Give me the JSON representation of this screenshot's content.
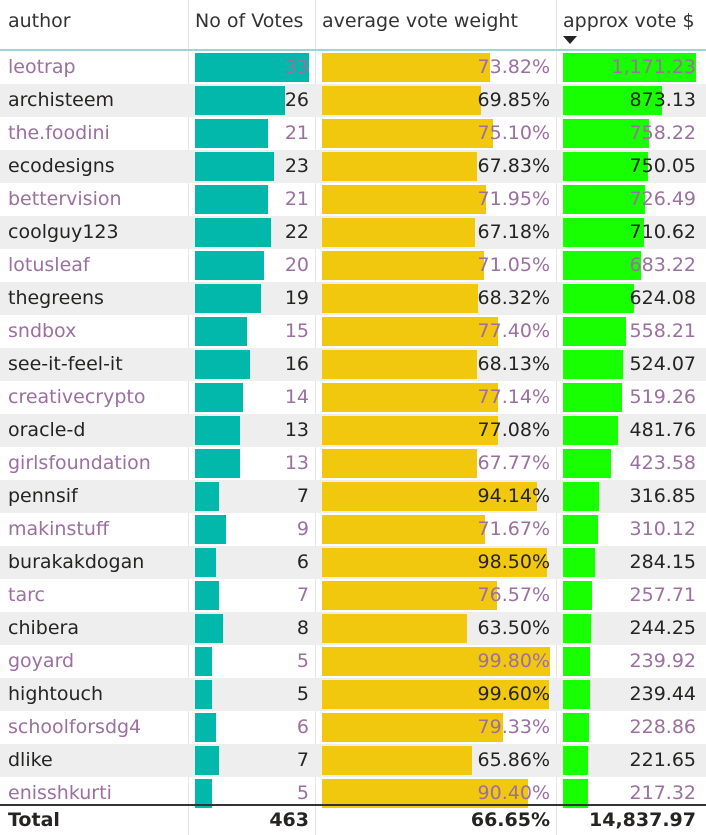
{
  "headers": {
    "author": "author",
    "votes": "No of Votes",
    "weight": "average vote weight",
    "dollars": "approx vote $"
  },
  "sort_icon": "sort-descending-icon",
  "colors": {
    "votes_bar": "#01b8aa",
    "weight_bar": "#f2c80f",
    "dollars_bar": "#17ff00",
    "alt_text": "#9b6fa0"
  },
  "chart_data": {
    "type": "table",
    "columns": [
      "author",
      "No of Votes",
      "average vote weight",
      "approx vote $"
    ],
    "rows": [
      {
        "author": "leotrap",
        "votes": 33,
        "votes_label": "33",
        "weight": 73.82,
        "weight_label": "73.82%",
        "dollars": 1171.23,
        "dollars_label": "1,171.23"
      },
      {
        "author": "archisteem",
        "votes": 26,
        "votes_label": "26",
        "weight": 69.85,
        "weight_label": "69.85%",
        "dollars": 873.13,
        "dollars_label": "873.13"
      },
      {
        "author": "the.foodini",
        "votes": 21,
        "votes_label": "21",
        "weight": 75.1,
        "weight_label": "75.10%",
        "dollars": 758.22,
        "dollars_label": "758.22"
      },
      {
        "author": "ecodesigns",
        "votes": 23,
        "votes_label": "23",
        "weight": 67.83,
        "weight_label": "67.83%",
        "dollars": 750.05,
        "dollars_label": "750.05"
      },
      {
        "author": "bettervision",
        "votes": 21,
        "votes_label": "21",
        "weight": 71.95,
        "weight_label": "71.95%",
        "dollars": 726.49,
        "dollars_label": "726.49"
      },
      {
        "author": "coolguy123",
        "votes": 22,
        "votes_label": "22",
        "weight": 67.18,
        "weight_label": "67.18%",
        "dollars": 710.62,
        "dollars_label": "710.62"
      },
      {
        "author": "lotusleaf",
        "votes": 20,
        "votes_label": "20",
        "weight": 71.05,
        "weight_label": "71.05%",
        "dollars": 683.22,
        "dollars_label": "683.22"
      },
      {
        "author": "thegreens",
        "votes": 19,
        "votes_label": "19",
        "weight": 68.32,
        "weight_label": "68.32%",
        "dollars": 624.08,
        "dollars_label": "624.08"
      },
      {
        "author": "sndbox",
        "votes": 15,
        "votes_label": "15",
        "weight": 77.4,
        "weight_label": "77.40%",
        "dollars": 558.21,
        "dollars_label": "558.21"
      },
      {
        "author": "see-it-feel-it",
        "votes": 16,
        "votes_label": "16",
        "weight": 68.13,
        "weight_label": "68.13%",
        "dollars": 524.07,
        "dollars_label": "524.07"
      },
      {
        "author": "creativecrypto",
        "votes": 14,
        "votes_label": "14",
        "weight": 77.14,
        "weight_label": "77.14%",
        "dollars": 519.26,
        "dollars_label": "519.26"
      },
      {
        "author": "oracle-d",
        "votes": 13,
        "votes_label": "13",
        "weight": 77.08,
        "weight_label": "77.08%",
        "dollars": 481.76,
        "dollars_label": "481.76"
      },
      {
        "author": "girlsfoundation",
        "votes": 13,
        "votes_label": "13",
        "weight": 67.77,
        "weight_label": "67.77%",
        "dollars": 423.58,
        "dollars_label": "423.58"
      },
      {
        "author": "pennsif",
        "votes": 7,
        "votes_label": "7",
        "weight": 94.14,
        "weight_label": "94.14%",
        "dollars": 316.85,
        "dollars_label": "316.85"
      },
      {
        "author": "makinstuff",
        "votes": 9,
        "votes_label": "9",
        "weight": 71.67,
        "weight_label": "71.67%",
        "dollars": 310.12,
        "dollars_label": "310.12"
      },
      {
        "author": "burakakdogan",
        "votes": 6,
        "votes_label": "6",
        "weight": 98.5,
        "weight_label": "98.50%",
        "dollars": 284.15,
        "dollars_label": "284.15"
      },
      {
        "author": "tarc",
        "votes": 7,
        "votes_label": "7",
        "weight": 76.57,
        "weight_label": "76.57%",
        "dollars": 257.71,
        "dollars_label": "257.71"
      },
      {
        "author": "chibera",
        "votes": 8,
        "votes_label": "8",
        "weight": 63.5,
        "weight_label": "63.50%",
        "dollars": 244.25,
        "dollars_label": "244.25"
      },
      {
        "author": "goyard",
        "votes": 5,
        "votes_label": "5",
        "weight": 99.8,
        "weight_label": "99.80%",
        "dollars": 239.92,
        "dollars_label": "239.92"
      },
      {
        "author": "hightouch",
        "votes": 5,
        "votes_label": "5",
        "weight": 99.6,
        "weight_label": "99.60%",
        "dollars": 239.44,
        "dollars_label": "239.44"
      },
      {
        "author": "schoolforsdg4",
        "votes": 6,
        "votes_label": "6",
        "weight": 79.33,
        "weight_label": "79.33%",
        "dollars": 228.86,
        "dollars_label": "228.86"
      },
      {
        "author": "dlike",
        "votes": 7,
        "votes_label": "7",
        "weight": 65.86,
        "weight_label": "65.86%",
        "dollars": 221.65,
        "dollars_label": "221.65"
      },
      {
        "author": "enisshkurti",
        "votes": 5,
        "votes_label": "5",
        "weight": 90.4,
        "weight_label": "90.40%",
        "dollars": 217.32,
        "dollars_label": "217.32"
      }
    ],
    "total": {
      "label": "Total",
      "votes": "463",
      "weight": "66.65%",
      "dollars": "14,837.97"
    },
    "sorted_by": "approx vote $",
    "sort_order": "descending"
  }
}
